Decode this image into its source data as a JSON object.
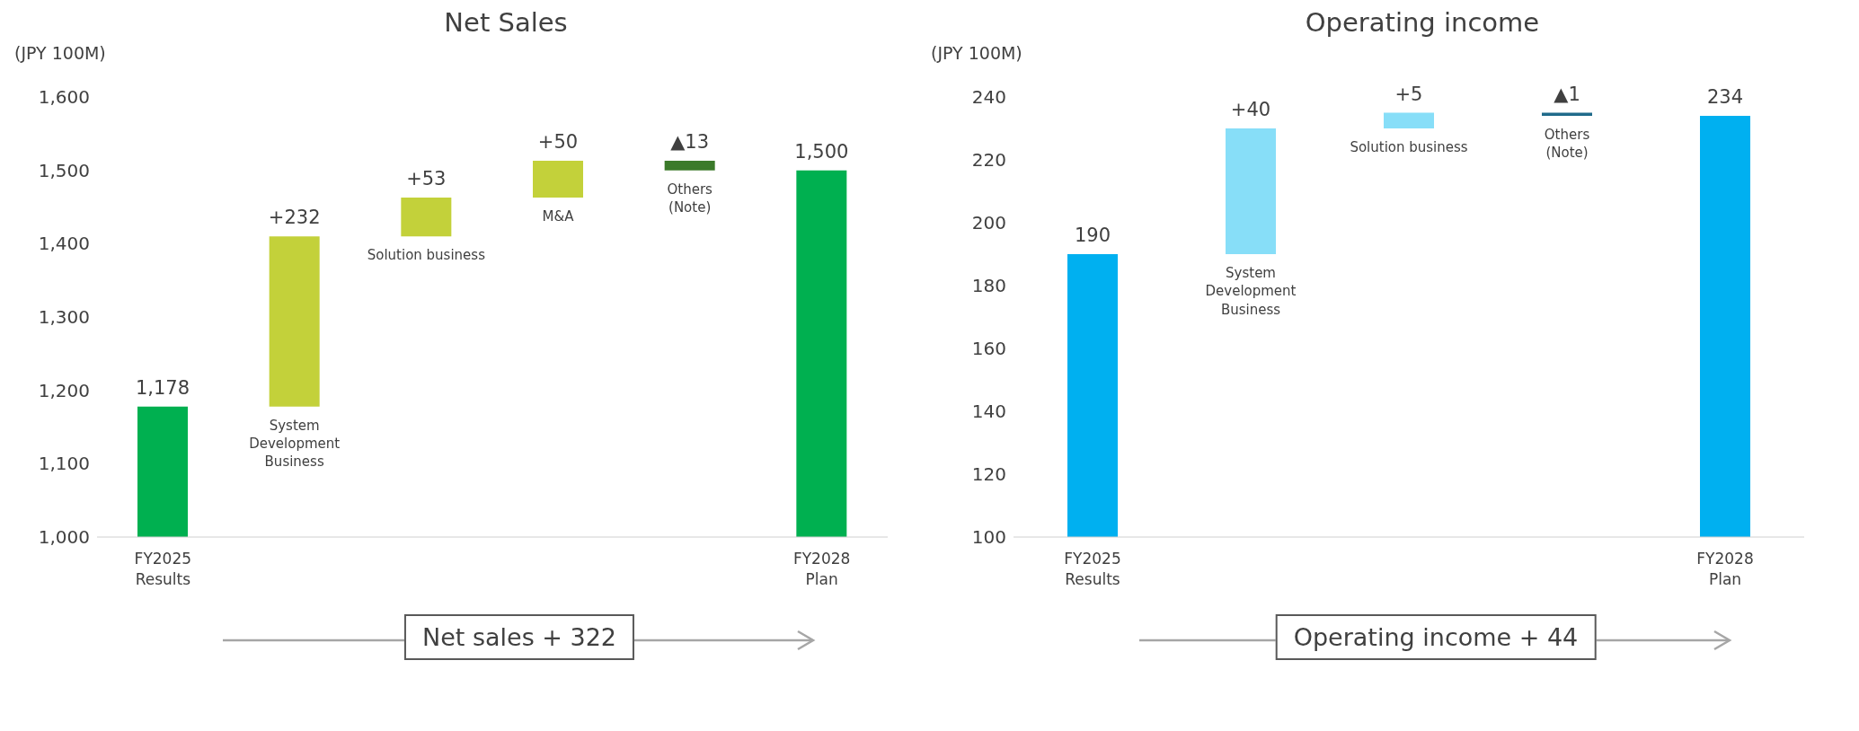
{
  "chart_data": [
    {
      "type": "bar",
      "title": "Net Sales",
      "ylabel": "(JPY 100M)",
      "categories": [
        "FY2025\nResults",
        "System\nDevelopment\nBusiness",
        "Solution business",
        "M&A",
        "Others\n(Note)",
        "FY2028\nPlan"
      ],
      "values": [
        1178,
        232,
        53,
        50,
        -13,
        1500
      ],
      "base": [
        null,
        1178,
        1410,
        1463,
        1513,
        null
      ],
      "value_labels": [
        "1,178",
        "+232",
        "+53",
        "+50",
        "▲13",
        "1,500"
      ],
      "colors": [
        "#00b050",
        "#c3d13a",
        "#c3d13a",
        "#c3d13a",
        "#3b7a2a",
        "#00b050"
      ],
      "ylim": [
        1000,
        1600
      ],
      "yticks": [
        {
          "value": 1000,
          "label": "1,000"
        },
        {
          "value": 1100,
          "label": "1,100"
        },
        {
          "value": 1200,
          "label": "1,200"
        },
        {
          "value": 1300,
          "label": "1,300"
        },
        {
          "value": 1400,
          "label": "1,400"
        },
        {
          "value": 1500,
          "label": "1,500"
        },
        {
          "value": 1600,
          "label": "1,600"
        }
      ],
      "annotations": [
        "Net sales + 322"
      ]
    },
    {
      "type": "bar",
      "title": "Operating income",
      "ylabel": "(JPY 100M)",
      "categories": [
        "FY2025\nResults",
        "System\nDevelopment\nBusiness",
        "Solution business",
        "Others\n(Note)",
        "FY2028\nPlan"
      ],
      "values": [
        190,
        40,
        5,
        -1,
        234
      ],
      "base": [
        null,
        190,
        230,
        235,
        null
      ],
      "value_labels": [
        "190",
        "+40",
        "+5",
        "▲1",
        "234"
      ],
      "colors": [
        "#00b0f0",
        "#87def8",
        "#87def8",
        "#1f6a8a",
        "#00b0f0"
      ],
      "ylim": [
        100,
        240
      ],
      "yticks": [
        100,
        120,
        140,
        160,
        180,
        200,
        220,
        240
      ],
      "annotations": [
        "Operating income + 44"
      ]
    }
  ]
}
